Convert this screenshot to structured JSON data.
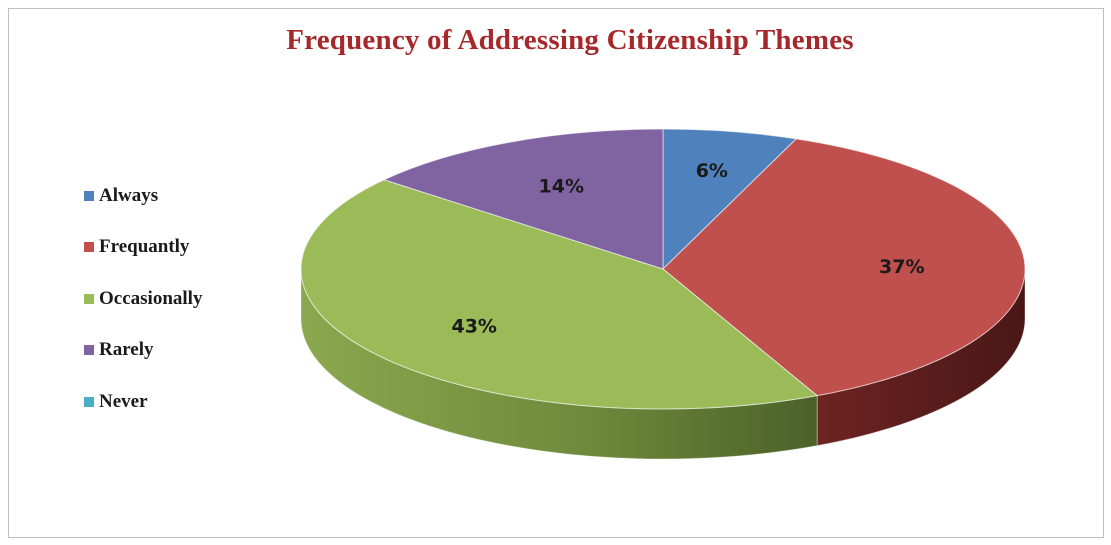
{
  "chart_data": {
    "type": "pie",
    "title": "Frequency of Addressing Citizenship Themes",
    "categories": [
      "Always",
      "Frequantly",
      "Occasionally",
      "Rarely",
      "Never"
    ],
    "values": [
      6,
      37,
      43,
      14,
      0
    ],
    "labels": [
      "6%",
      "37%",
      "43%",
      "14%",
      ""
    ],
    "colors": [
      "#4f81bd",
      "#c0504d",
      "#9bbb59",
      "#8064a2",
      "#4bacc6"
    ],
    "legend_position": "left",
    "style": "3d"
  }
}
